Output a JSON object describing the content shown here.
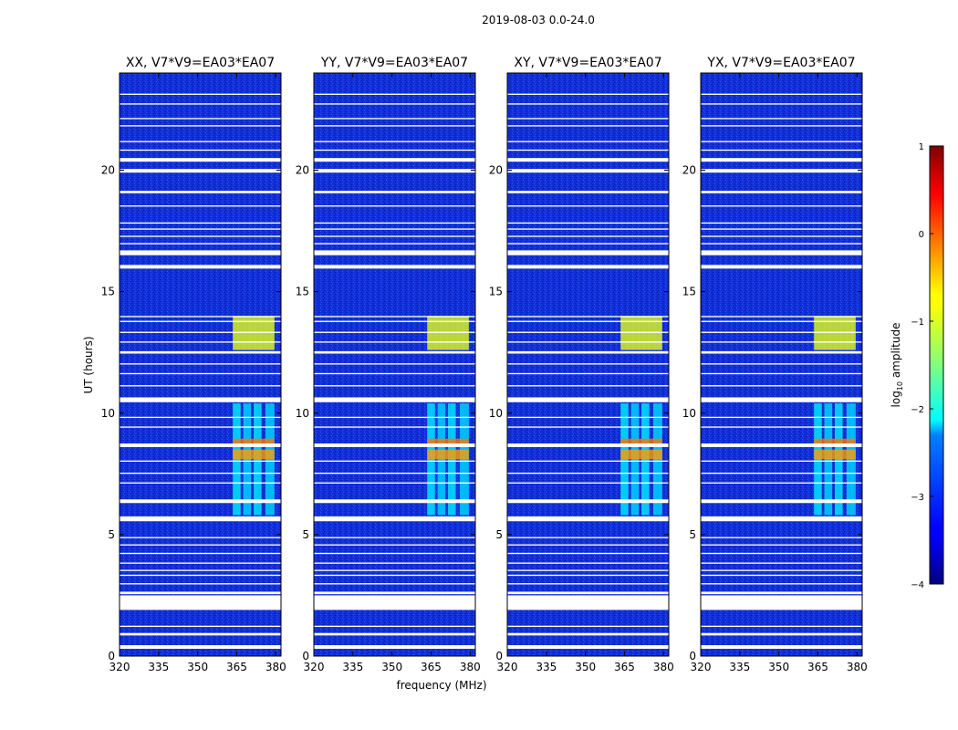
{
  "chart_data": {
    "type": "heatmap",
    "suptitle": "2019-08-03 0.0-24.0",
    "xlabel": "frequency (MHz)",
    "ylabel": "UT (hours)",
    "xlim": [
      320,
      382
    ],
    "ylim": [
      0,
      24
    ],
    "x_ticks": [
      320,
      335,
      350,
      365,
      380
    ],
    "y_ticks": [
      0,
      5,
      10,
      15,
      20
    ],
    "panels": [
      {
        "title": "XX, V7*V9=EA03*EA07"
      },
      {
        "title": "YY, V7*V9=EA03*EA07"
      },
      {
        "title": "XY, V7*V9=EA03*EA07"
      },
      {
        "title": "YX, V7*V9=EA03*EA07"
      }
    ],
    "colorbar": {
      "label": "log",
      "label_sub": "10",
      "label_suffix": " amplitude",
      "range": [
        -4,
        1
      ],
      "ticks": [
        1,
        0,
        -1,
        -2,
        -3,
        -4
      ],
      "tick_labels": [
        "1",
        "0",
        "−1",
        "−2",
        "−3",
        "−4"
      ],
      "colormap": "jet"
    },
    "flagged_time_ranges_hours": [
      [
        0.3,
        0.45
      ],
      [
        0.85,
        0.95
      ],
      [
        1.2,
        1.25
      ],
      [
        1.9,
        2.5
      ],
      [
        2.55,
        2.65
      ],
      [
        2.95,
        3.0
      ],
      [
        3.3,
        3.35
      ],
      [
        3.5,
        3.55
      ],
      [
        3.8,
        3.85
      ],
      [
        4.2,
        4.25
      ],
      [
        4.55,
        4.6
      ],
      [
        4.85,
        4.9
      ],
      [
        5.55,
        5.75
      ],
      [
        6.3,
        6.45
      ],
      [
        7.1,
        7.15
      ],
      [
        7.5,
        7.55
      ],
      [
        8.0,
        8.05
      ],
      [
        8.6,
        8.75
      ],
      [
        9.4,
        9.45
      ],
      [
        9.8,
        9.85
      ],
      [
        10.45,
        10.65
      ],
      [
        11.1,
        11.15
      ],
      [
        11.6,
        11.65
      ],
      [
        12.0,
        12.05
      ],
      [
        12.45,
        12.55
      ],
      [
        12.9,
        12.95
      ],
      [
        13.3,
        13.35
      ],
      [
        13.75,
        13.8
      ],
      [
        13.95,
        14.0
      ],
      [
        15.95,
        16.1
      ],
      [
        16.5,
        16.7
      ],
      [
        16.95,
        17.0
      ],
      [
        17.25,
        17.3
      ],
      [
        17.55,
        17.6
      ],
      [
        17.8,
        17.85
      ],
      [
        18.5,
        18.55
      ],
      [
        19.05,
        19.15
      ],
      [
        19.9,
        20.05
      ],
      [
        20.35,
        20.5
      ],
      [
        20.8,
        20.85
      ],
      [
        21.15,
        21.2
      ],
      [
        21.8,
        21.85
      ],
      [
        22.1,
        22.15
      ],
      [
        22.7,
        22.75
      ],
      [
        23.1,
        23.15
      ]
    ],
    "rfi_bands": [
      {
        "freq_mhz": [
          363.5,
          366.5
        ],
        "hours": [
          5.8,
          10.4
        ],
        "level": -2.2
      },
      {
        "freq_mhz": [
          367.5,
          370.5
        ],
        "hours": [
          5.8,
          10.4
        ],
        "level": -2.3
      },
      {
        "freq_mhz": [
          371.5,
          374.5
        ],
        "hours": [
          5.8,
          10.4
        ],
        "level": -2.2
      },
      {
        "freq_mhz": [
          376.0,
          379.5
        ],
        "hours": [
          5.8,
          10.4
        ],
        "level": -2.3
      },
      {
        "freq_mhz": [
          363.5,
          379.5
        ],
        "hours": [
          12.6,
          14.0
        ],
        "level": -1.0
      },
      {
        "freq_mhz": [
          363.5,
          379.5
        ],
        "hours": [
          8.1,
          8.5
        ],
        "level": -0.4
      },
      {
        "freq_mhz": [
          363.5,
          379.5
        ],
        "hours": [
          8.75,
          8.95
        ],
        "level": -0.2
      }
    ]
  }
}
